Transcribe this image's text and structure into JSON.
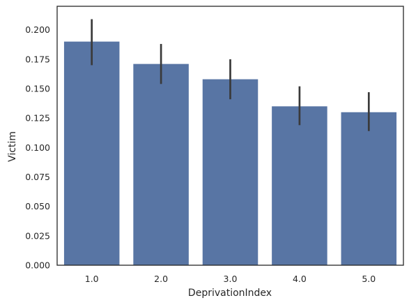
{
  "chart_data": {
    "type": "bar",
    "title": "",
    "xlabel": "DeprivationIndex",
    "ylabel": "Victim",
    "categories": [
      "1.0",
      "2.0",
      "3.0",
      "4.0",
      "5.0"
    ],
    "values": [
      0.19,
      0.171,
      0.158,
      0.135,
      0.13
    ],
    "error_low": [
      0.17,
      0.154,
      0.141,
      0.119,
      0.114
    ],
    "error_high": [
      0.209,
      0.188,
      0.175,
      0.152,
      0.147
    ],
    "ylim": [
      0,
      0.22
    ],
    "yticks": [
      "0.000",
      "0.025",
      "0.050",
      "0.075",
      "0.100",
      "0.125",
      "0.150",
      "0.175",
      "0.200"
    ],
    "grid": false,
    "colors": {
      "bar": "#5875a4",
      "error": "#3a3a3a",
      "spine": "#262626"
    }
  }
}
